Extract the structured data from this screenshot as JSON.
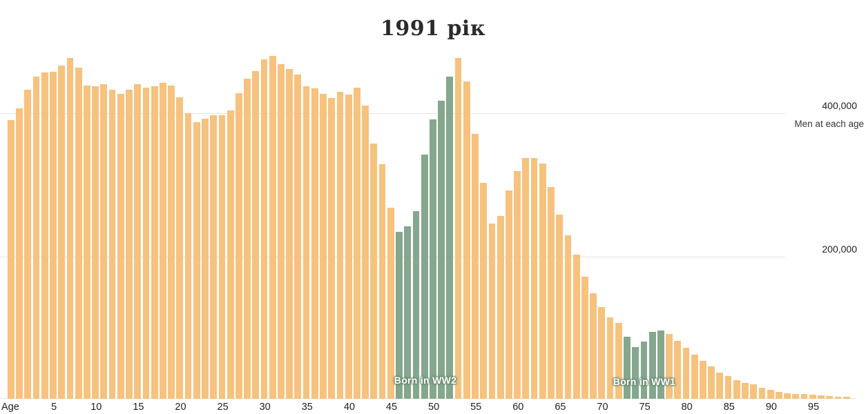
{
  "title": "1991 рік",
  "y_axis": {
    "gridlines": [
      {
        "value": 400000,
        "label": "400,000"
      },
      {
        "value": 200000,
        "label": "200,000"
      }
    ],
    "note": "Men at each age"
  },
  "x_axis": {
    "label": "Age",
    "ticks": [
      5,
      10,
      15,
      20,
      25,
      30,
      35,
      40,
      45,
      50,
      55,
      60,
      65,
      70,
      75,
      80,
      85,
      90,
      95
    ]
  },
  "colors": {
    "bar_orange": "#F6C27E",
    "bar_green": "#85A78D",
    "grid": "#E3E3E0",
    "text": "#222222",
    "annotation_text": "#FFFFFF",
    "annotation_halo": "#6E8F76"
  },
  "chart_data": {
    "type": "bar",
    "title": "1991 рік",
    "xlabel": "Age",
    "ylabel": "Men at each age",
    "x_range": [
      0,
      99
    ],
    "ylim": [
      0,
      500000
    ],
    "grid": "horizontal",
    "legend": "none",
    "values": [
      388000,
      405000,
      431000,
      449000,
      455000,
      456000,
      464000,
      475000,
      462000,
      437000,
      436000,
      438000,
      431000,
      425000,
      431000,
      438000,
      434000,
      436000,
      440000,
      437000,
      420000,
      398000,
      386000,
      390000,
      395000,
      395000,
      402000,
      426000,
      446000,
      457000,
      473000,
      478000,
      466000,
      460000,
      452000,
      436000,
      433000,
      425000,
      419000,
      428000,
      424000,
      434000,
      409000,
      356000,
      327000,
      266000,
      233000,
      240000,
      262000,
      340000,
      389000,
      415000,
      449000,
      475000,
      442000,
      369000,
      301000,
      244000,
      255000,
      290000,
      317000,
      336000,
      336000,
      328000,
      295000,
      257000,
      228000,
      201000,
      170000,
      147000,
      128000,
      113000,
      106000,
      87000,
      72000,
      80000,
      93000,
      95000,
      90000,
      81000,
      71000,
      62000,
      53000,
      45000,
      37000,
      32000,
      26000,
      22000,
      20000,
      15000,
      12500,
      9600,
      7700,
      6700,
      6400,
      5500,
      4500,
      3500,
      3000,
      2500
    ],
    "highlight_ranges": [
      {
        "label": "Born in WW2",
        "from_age": 46,
        "to_age": 52
      },
      {
        "label": "Born in WW1",
        "from_age": 73,
        "to_age": 77
      }
    ]
  }
}
